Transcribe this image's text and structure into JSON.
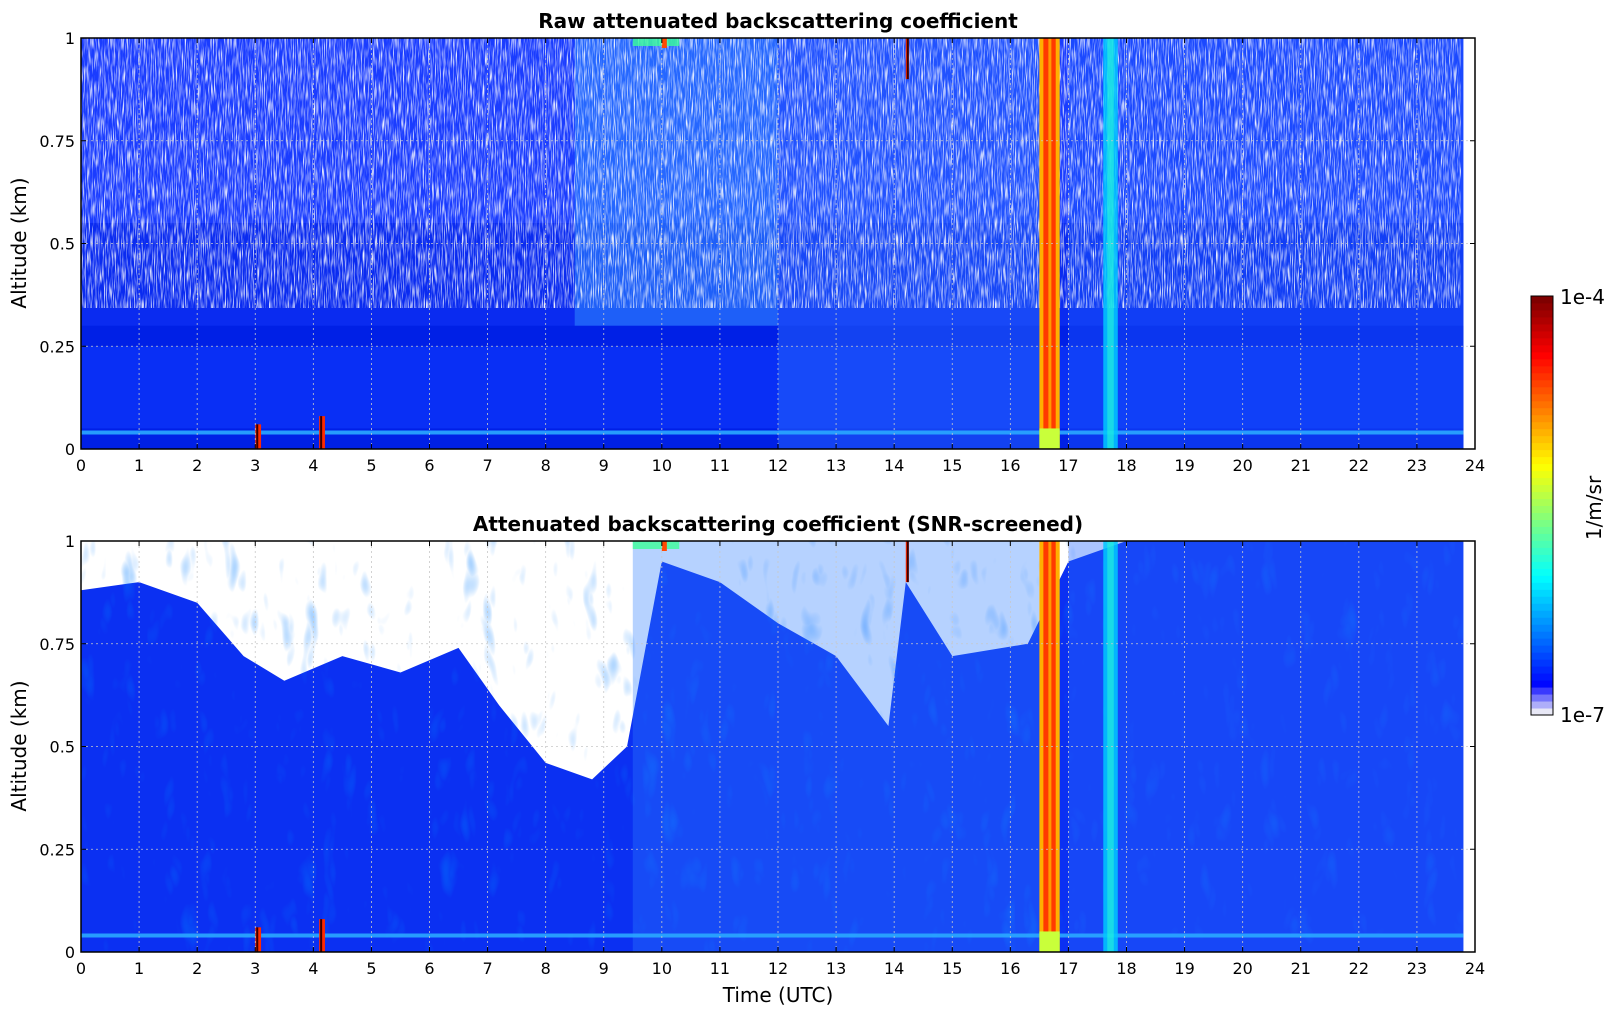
{
  "colors": {
    "jet": [
      "#00007f",
      "#0000ff",
      "#007fff",
      "#00ffff",
      "#7fff7f",
      "#ffff00",
      "#ff7f00",
      "#ff0000",
      "#7f0000"
    ],
    "low_end": "#e8e8f6",
    "title_text": "#444444",
    "grid": "#c8c8c8"
  },
  "chart_data": [
    {
      "type": "heatmap",
      "title": "Raw attenuated backscattering coefficient",
      "xlabel": "",
      "ylabel": "Altitude (km)",
      "x_range": [
        0,
        24
      ],
      "y_range": [
        0,
        1
      ],
      "x_ticks": [
        "0",
        "1",
        "2",
        "3",
        "4",
        "5",
        "6",
        "7",
        "8",
        "9",
        "10",
        "11",
        "12",
        "13",
        "14",
        "15",
        "16",
        "17",
        "18",
        "19",
        "20",
        "21",
        "22",
        "23",
        "24"
      ],
      "y_ticks": [
        "0",
        "0.25",
        "0.5",
        "0.75",
        "1"
      ],
      "grid": true,
      "data_end_time": 23.8,
      "features": [
        {
          "x_start": 16.5,
          "x_end": 16.85,
          "description": "intense vertical band",
          "level": "1e-4"
        },
        {
          "x_start": 17.6,
          "x_end": 17.85,
          "description": "moderate vertical band"
        },
        {
          "x_start": 3.0,
          "x_end": 3.1,
          "y_max": 0.06,
          "description": "near-surface peak"
        },
        {
          "x_start": 4.1,
          "x_end": 4.2,
          "y_max": 0.08,
          "description": "near-surface peak"
        },
        {
          "x_start": 14.2,
          "x_end": 14.25,
          "y_min": 0.9,
          "description": "top-level peak"
        }
      ]
    },
    {
      "type": "heatmap",
      "title": "Attenuated backscattering coefficient (SNR-screened)",
      "xlabel": "Time (UTC)",
      "ylabel": "Altitude (km)",
      "x_range": [
        0,
        24
      ],
      "y_range": [
        0,
        1
      ],
      "x_ticks": [
        "0",
        "1",
        "2",
        "3",
        "4",
        "5",
        "6",
        "7",
        "8",
        "9",
        "10",
        "11",
        "12",
        "13",
        "14",
        "15",
        "16",
        "17",
        "18",
        "19",
        "20",
        "21",
        "22",
        "23",
        "24"
      ],
      "y_ticks": [
        "0",
        "0.25",
        "0.5",
        "0.75",
        "1"
      ],
      "grid": true,
      "data_end_time": 23.8,
      "screened_top_km": [
        [
          0,
          0.88
        ],
        [
          1,
          0.9
        ],
        [
          2,
          0.85
        ],
        [
          2.8,
          0.72
        ],
        [
          3.5,
          0.66
        ],
        [
          4.5,
          0.72
        ],
        [
          5.5,
          0.68
        ],
        [
          6.5,
          0.74
        ],
        [
          7.2,
          0.6
        ],
        [
          8,
          0.46
        ],
        [
          8.8,
          0.42
        ],
        [
          9.4,
          0.5
        ],
        [
          10,
          0.95
        ],
        [
          11,
          0.9
        ],
        [
          12,
          0.8
        ],
        [
          13,
          0.72
        ],
        [
          13.9,
          0.55
        ],
        [
          14.2,
          0.9
        ],
        [
          15,
          0.72
        ],
        [
          16.3,
          0.75
        ],
        [
          17,
          0.95
        ],
        [
          18,
          1.0
        ],
        [
          23.8,
          1.0
        ]
      ]
    }
  ],
  "colorbar": {
    "label": "1/m/sr",
    "max_label": "1e-4",
    "min_label": "1e-7"
  }
}
